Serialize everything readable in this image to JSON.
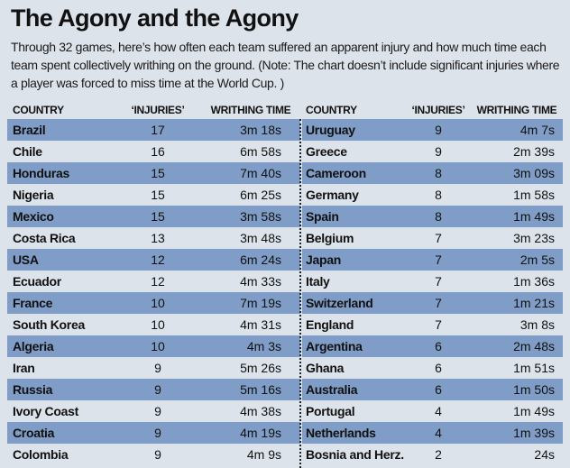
{
  "title": "The Agony and the Agony",
  "intro": "Through 32 games, here’s how often each team suffered an apparent injury and how much time each team spent collectively writhing on the ground. (Note: The chart doesn’t include significant injuries where a player was forced to miss time at the World Cup. )",
  "headers": {
    "country": "COUNTRY",
    "injuries": "‘INJURIES’",
    "writhing": "WRITHING TIME"
  },
  "colors": {
    "background": "#dde3ea",
    "stripe": "#7f9dc6"
  },
  "left": [
    {
      "country": "Brazil",
      "injuries": "17",
      "time": "3m 18s"
    },
    {
      "country": "Chile",
      "injuries": "16",
      "time": "6m 58s"
    },
    {
      "country": "Honduras",
      "injuries": "15",
      "time": "7m 40s"
    },
    {
      "country": "Nigeria",
      "injuries": "15",
      "time": "6m 25s"
    },
    {
      "country": "Mexico",
      "injuries": "15",
      "time": "3m 58s"
    },
    {
      "country": "Costa Rica",
      "injuries": "13",
      "time": "3m 48s"
    },
    {
      "country": "USA",
      "injuries": "12",
      "time": "6m 24s"
    },
    {
      "country": "Ecuador",
      "injuries": "12",
      "time": "4m 33s"
    },
    {
      "country": "France",
      "injuries": "10",
      "time": "7m 19s"
    },
    {
      "country": "South Korea",
      "injuries": "10",
      "time": "4m 31s"
    },
    {
      "country": "Algeria",
      "injuries": "10",
      "time": "4m 3s"
    },
    {
      "country": "Iran",
      "injuries": "9",
      "time": "5m 26s"
    },
    {
      "country": "Russia",
      "injuries": "9",
      "time": "5m 16s"
    },
    {
      "country": "Ivory Coast",
      "injuries": "9",
      "time": "4m 38s"
    },
    {
      "country": "Croatia",
      "injuries": "9",
      "time": "4m 19s"
    },
    {
      "country": "Colombia",
      "injuries": "9",
      "time": "4m 9s"
    }
  ],
  "right": [
    {
      "country": "Uruguay",
      "injuries": "9",
      "time": "4m 7s"
    },
    {
      "country": "Greece",
      "injuries": "9",
      "time": "2m 39s"
    },
    {
      "country": "Cameroon",
      "injuries": "8",
      "time": "3m 09s"
    },
    {
      "country": "Germany",
      "injuries": "8",
      "time": "1m 58s"
    },
    {
      "country": "Spain",
      "injuries": "8",
      "time": "1m 49s"
    },
    {
      "country": "Belgium",
      "injuries": "7",
      "time": "3m 23s"
    },
    {
      "country": "Japan",
      "injuries": "7",
      "time": "2m 5s"
    },
    {
      "country": "Italy",
      "injuries": "7",
      "time": "1m 36s"
    },
    {
      "country": "Switzerland",
      "injuries": "7",
      "time": "1m 21s"
    },
    {
      "country": "England",
      "injuries": "7",
      "time": "3m 8s"
    },
    {
      "country": "Argentina",
      "injuries": "6",
      "time": "2m 48s"
    },
    {
      "country": "Ghana",
      "injuries": "6",
      "time": "1m 51s"
    },
    {
      "country": "Australia",
      "injuries": "6",
      "time": "1m 50s"
    },
    {
      "country": "Portugal",
      "injuries": "4",
      "time": "1m 49s"
    },
    {
      "country": "Netherlands",
      "injuries": "4",
      "time": "1m 39s"
    },
    {
      "country": "Bosnia and Herz.",
      "injuries": "2",
      "time": "24s"
    }
  ]
}
